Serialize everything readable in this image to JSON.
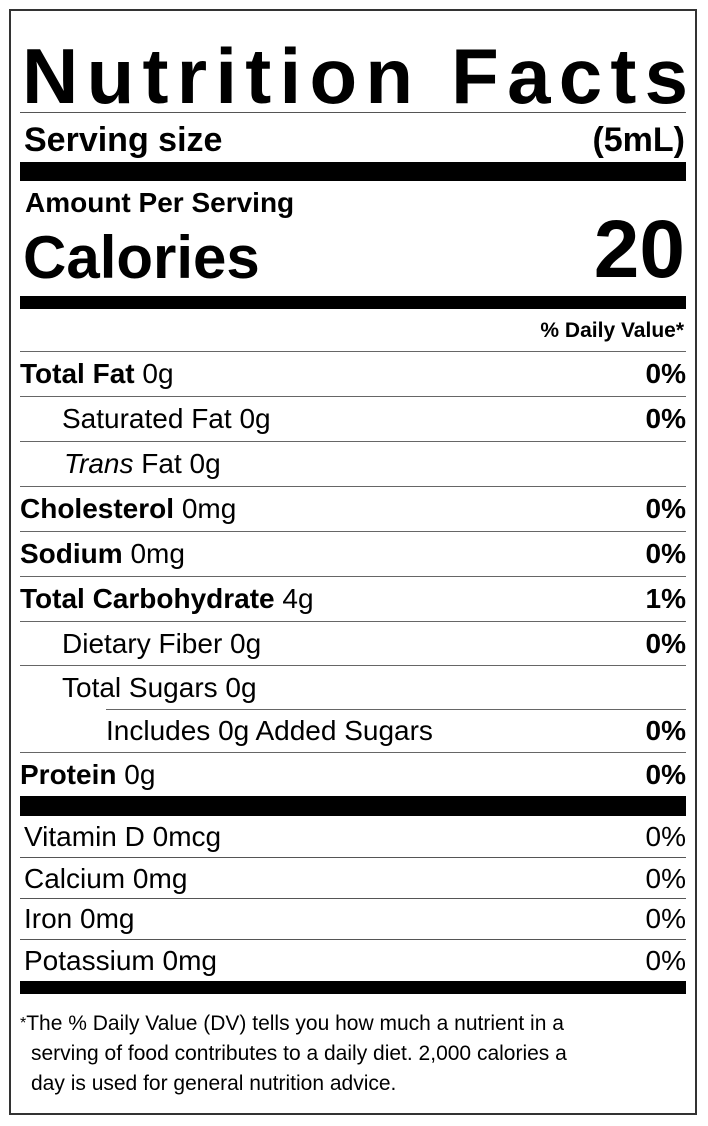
{
  "header": {
    "title": "Nutrition Facts",
    "serving_size_label": "Serving size",
    "serving_size": "(5mL)",
    "amount_per_serving": "Amount Per Serving",
    "calories_label": "Calories",
    "calories": "20",
    "daily_value_heading": "% Daily Value*"
  },
  "nutrients": [
    {
      "name": "Total Fat",
      "amount": "0g",
      "daily_value": "0%"
    },
    {
      "name": "Saturated Fat",
      "amount": "0g",
      "daily_value": "0%"
    },
    {
      "name_italic": "Trans",
      "name": "Fat",
      "amount": "0g"
    },
    {
      "name": "Cholesterol",
      "amount": "0mg",
      "daily_value": "0%"
    },
    {
      "name": "Sodium",
      "amount": "0mg",
      "daily_value": "0%"
    },
    {
      "name": "Total Carbohydrate",
      "amount": "4g",
      "daily_value": "1%"
    },
    {
      "name": "Dietary Fiber",
      "amount": "0g",
      "daily_value": "0%"
    },
    {
      "name": "Total Sugars",
      "amount": "0g"
    },
    {
      "name": "Includes 0g Added Sugars",
      "daily_value": "0%"
    },
    {
      "name": "Protein",
      "amount": "0g",
      "daily_value": "0%"
    }
  ],
  "vitamins": [
    {
      "name": "Vitamin D",
      "amount": "0mcg",
      "daily_value": "0%"
    },
    {
      "name": "Calcium",
      "amount": "0mg",
      "daily_value": "0%"
    },
    {
      "name": "Iron",
      "amount": "0mg",
      "daily_value": "0%"
    },
    {
      "name": "Potassium",
      "amount": "0mg",
      "daily_value": "0%"
    }
  ],
  "footnote": {
    "marker": "*",
    "lines": [
      "The % Daily Value (DV) tells you how much a nutrient in a",
      "serving of food contributes to a daily diet. 2,000 calories a",
      "day is used for general nutrition advice."
    ]
  }
}
